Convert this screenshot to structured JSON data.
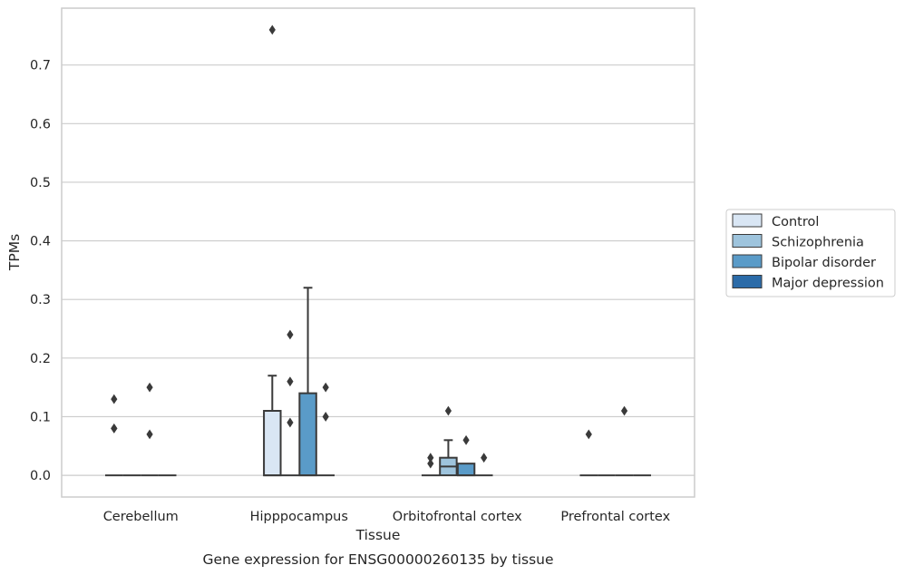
{
  "chart_data": {
    "type": "boxplot",
    "title": "",
    "caption": "Gene expression for ENSG00000260135 by tissue",
    "xlabel": "Tissue",
    "ylabel": "TPMs",
    "ylim": [
      -0.037,
      0.797
    ],
    "yticks": [
      "0.0",
      "0.1",
      "0.2",
      "0.3",
      "0.4",
      "0.5",
      "0.6",
      "0.7"
    ],
    "grid": "horizontal",
    "legend_position": "right",
    "categories": [
      "Cerebellum",
      "Hipppocampus",
      "Orbitofrontal cortex",
      "Prefrontal cortex"
    ],
    "series": [
      {
        "name": "Control",
        "color": "#d9e6f4",
        "boxes": [
          {
            "q1": 0,
            "median": 0,
            "q3": 0,
            "whisker_low": 0,
            "whisker_high": 0,
            "outliers": [
              0.08,
              0.08,
              0.13
            ]
          },
          {
            "q1": 0,
            "median": 0,
            "q3": 0.11,
            "whisker_low": 0,
            "whisker_high": 0.17,
            "outliers": [
              0.76
            ]
          },
          {
            "q1": 0,
            "median": 0,
            "q3": 0,
            "whisker_low": 0,
            "whisker_high": 0,
            "outliers": [
              0.02,
              0.03
            ]
          },
          {
            "q1": 0,
            "median": 0,
            "q3": 0,
            "whisker_low": 0,
            "whisker_high": 0,
            "outliers": [
              0.07
            ]
          }
        ]
      },
      {
        "name": "Schizophrenia",
        "color": "#9ec4dd",
        "boxes": [
          {
            "q1": 0,
            "median": 0,
            "q3": 0,
            "whisker_low": 0,
            "whisker_high": 0,
            "outliers": []
          },
          {
            "q1": 0,
            "median": 0,
            "q3": 0,
            "whisker_low": 0,
            "whisker_high": 0,
            "outliers": [
              0.09,
              0.16,
              0.24
            ]
          },
          {
            "q1": 0,
            "median": 0.015,
            "q3": 0.03,
            "whisker_low": 0,
            "whisker_high": 0.06,
            "outliers": [
              0.11
            ]
          },
          {
            "q1": 0,
            "median": 0,
            "q3": 0,
            "whisker_low": 0,
            "whisker_high": 0,
            "outliers": []
          }
        ]
      },
      {
        "name": "Bipolar disorder",
        "color": "#5a9bc8",
        "boxes": [
          {
            "q1": 0,
            "median": 0,
            "q3": 0,
            "whisker_low": 0,
            "whisker_high": 0,
            "outliers": [
              0.07,
              0.15
            ]
          },
          {
            "q1": 0,
            "median": 0,
            "q3": 0.14,
            "whisker_low": 0,
            "whisker_high": 0.32,
            "outliers": []
          },
          {
            "q1": 0,
            "median": 0,
            "q3": 0.02,
            "whisker_low": 0,
            "whisker_high": 0.02,
            "outliers": [
              0.06
            ]
          },
          {
            "q1": 0,
            "median": 0,
            "q3": 0,
            "whisker_low": 0,
            "whisker_high": 0,
            "outliers": [
              0.11
            ]
          }
        ]
      },
      {
        "name": "Major depression",
        "color": "#2b6ba8",
        "boxes": [
          {
            "q1": 0,
            "median": 0,
            "q3": 0,
            "whisker_low": 0,
            "whisker_high": 0,
            "outliers": []
          },
          {
            "q1": 0,
            "median": 0,
            "q3": 0,
            "whisker_low": 0,
            "whisker_high": 0,
            "outliers": [
              0.1,
              0.15
            ]
          },
          {
            "q1": 0,
            "median": 0,
            "q3": 0,
            "whisker_low": 0,
            "whisker_high": 0,
            "outliers": [
              0.03
            ]
          },
          {
            "q1": 0,
            "median": 0,
            "q3": 0,
            "whisker_low": 0,
            "whisker_high": 0,
            "outliers": []
          }
        ]
      }
    ]
  }
}
